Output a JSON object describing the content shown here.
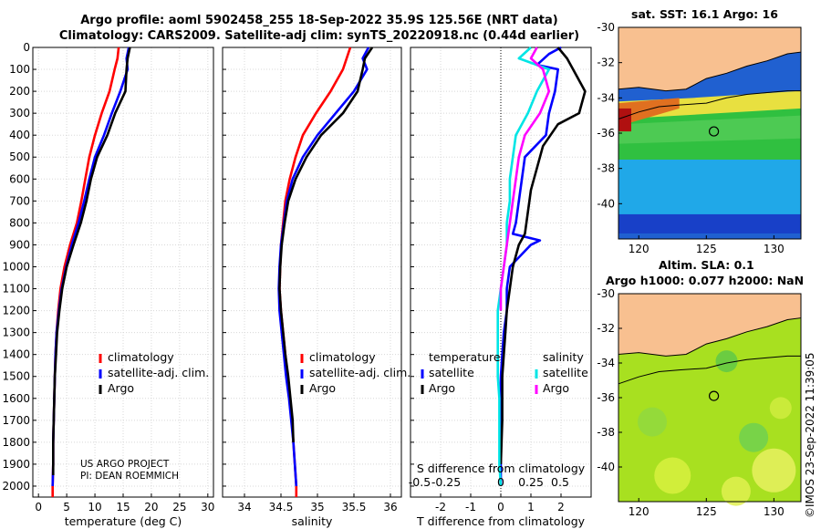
{
  "header": {
    "title1": "Argo profile: aoml 5902458_255 18-Sep-2022 35.9S 125.56E (NRT data)",
    "title2": "Climatology: CARS2009. Satellite-adj clim: synTS_20220918.nc (0.44d earlier)"
  },
  "colors": {
    "clim": "#ff0000",
    "sat": "#0000ff",
    "argo": "#000000",
    "sat_s": "#00e5e5",
    "argo_s": "#ff00ff"
  },
  "chart_data": [
    {
      "type": "line",
      "id": "temperature",
      "xlabel": "temperature (deg C)",
      "ylim": [
        2050,
        0
      ],
      "xlim": [
        -1,
        31
      ],
      "xticks": [
        0,
        5,
        10,
        15,
        20,
        25,
        30
      ],
      "yticks": [
        0,
        100,
        200,
        300,
        400,
        500,
        600,
        700,
        800,
        900,
        1000,
        1100,
        1200,
        1300,
        1400,
        1500,
        1600,
        1700,
        1800,
        1900,
        2000
      ],
      "legend": [
        "climatology",
        "satellite-adj. clim.",
        "Argo"
      ],
      "series": [
        {
          "name": "climatology",
          "color": "#ff0000",
          "points": [
            [
              14.2,
              0
            ],
            [
              14.0,
              50
            ],
            [
              13.5,
              100
            ],
            [
              12.6,
              200
            ],
            [
              11.2,
              300
            ],
            [
              10.0,
              400
            ],
            [
              9.0,
              500
            ],
            [
              8.3,
              600
            ],
            [
              7.6,
              700
            ],
            [
              6.8,
              800
            ],
            [
              5.6,
              900
            ],
            [
              4.6,
              1000
            ],
            [
              3.9,
              1100
            ],
            [
              3.5,
              1200
            ],
            [
              3.2,
              1300
            ],
            [
              3.0,
              1400
            ],
            [
              2.9,
              1500
            ],
            [
              2.8,
              1600
            ],
            [
              2.7,
              1700
            ],
            [
              2.6,
              1800
            ],
            [
              2.6,
              1900
            ],
            [
              2.5,
              2000
            ],
            [
              2.5,
              2050
            ]
          ]
        },
        {
          "name": "satellite-adj. clim.",
          "color": "#0000ff",
          "points": [
            [
              16.0,
              0
            ],
            [
              15.6,
              50
            ],
            [
              15.8,
              100
            ],
            [
              14.5,
              200
            ],
            [
              13.0,
              300
            ],
            [
              11.6,
              400
            ],
            [
              10.0,
              500
            ],
            [
              9.0,
              600
            ],
            [
              8.1,
              700
            ],
            [
              7.1,
              800
            ],
            [
              5.9,
              900
            ],
            [
              4.9,
              1000
            ],
            [
              4.1,
              1100
            ],
            [
              3.6,
              1200
            ],
            [
              3.2,
              1300
            ],
            [
              3.0,
              1400
            ],
            [
              2.9,
              1500
            ],
            [
              2.8,
              1600
            ],
            [
              2.7,
              1700
            ],
            [
              2.6,
              1800
            ],
            [
              2.6,
              1900
            ],
            [
              2.5,
              2000
            ]
          ]
        },
        {
          "name": "Argo",
          "color": "#000000",
          "points": [
            [
              16.2,
              0
            ],
            [
              15.8,
              50
            ],
            [
              15.6,
              100
            ],
            [
              15.4,
              200
            ],
            [
              13.6,
              300
            ],
            [
              12.2,
              400
            ],
            [
              10.4,
              500
            ],
            [
              9.3,
              600
            ],
            [
              8.5,
              700
            ],
            [
              7.5,
              800
            ],
            [
              6.2,
              900
            ],
            [
              5.0,
              1000
            ],
            [
              4.2,
              1100
            ],
            [
              3.7,
              1200
            ],
            [
              3.3,
              1300
            ],
            [
              3.1,
              1400
            ],
            [
              2.9,
              1500
            ],
            [
              2.8,
              1600
            ],
            [
              2.7,
              1700
            ],
            [
              2.6,
              1800
            ],
            [
              2.6,
              1900
            ],
            [
              2.6,
              1950
            ]
          ]
        }
      ],
      "annotations": [
        "US ARGO PROJECT",
        "PI: DEAN ROEMMICH"
      ]
    },
    {
      "type": "line",
      "id": "salinity",
      "xlabel": "salinity",
      "ylim": [
        2050,
        0
      ],
      "xlim": [
        33.7,
        36.15
      ],
      "xticks": [
        34,
        34.5,
        35,
        35.5,
        36
      ],
      "legend": [
        "climatology",
        "satellite-adj. clim.",
        "Argo"
      ],
      "series": [
        {
          "name": "climatology",
          "color": "#ff0000",
          "points": [
            [
              35.45,
              0
            ],
            [
              35.4,
              50
            ],
            [
              35.35,
              100
            ],
            [
              35.18,
              200
            ],
            [
              34.98,
              300
            ],
            [
              34.8,
              400
            ],
            [
              34.7,
              500
            ],
            [
              34.62,
              600
            ],
            [
              34.56,
              700
            ],
            [
              34.53,
              800
            ],
            [
              34.5,
              900
            ],
            [
              34.49,
              1000
            ],
            [
              34.48,
              1100
            ],
            [
              34.5,
              1200
            ],
            [
              34.53,
              1300
            ],
            [
              34.56,
              1400
            ],
            [
              34.59,
              1500
            ],
            [
              34.62,
              1600
            ],
            [
              34.65,
              1700
            ],
            [
              34.67,
              1800
            ],
            [
              34.69,
              1900
            ],
            [
              34.71,
              2000
            ],
            [
              34.71,
              2050
            ]
          ]
        },
        {
          "name": "satellite-adj. clim.",
          "color": "#0000ff",
          "points": [
            [
              35.7,
              0
            ],
            [
              35.62,
              50
            ],
            [
              35.68,
              100
            ],
            [
              35.5,
              200
            ],
            [
              35.25,
              300
            ],
            [
              35.0,
              400
            ],
            [
              34.8,
              500
            ],
            [
              34.66,
              600
            ],
            [
              34.58,
              700
            ],
            [
              34.54,
              800
            ],
            [
              34.5,
              900
            ],
            [
              34.48,
              1000
            ],
            [
              34.47,
              1100
            ],
            [
              34.48,
              1200
            ],
            [
              34.51,
              1300
            ],
            [
              34.54,
              1400
            ],
            [
              34.57,
              1500
            ],
            [
              34.61,
              1600
            ],
            [
              34.64,
              1700
            ],
            [
              34.67,
              1800
            ],
            [
              34.69,
              1900
            ],
            [
              34.71,
              2000
            ]
          ]
        },
        {
          "name": "Argo",
          "color": "#000000",
          "points": [
            [
              35.75,
              0
            ],
            [
              35.65,
              50
            ],
            [
              35.62,
              100
            ],
            [
              35.55,
              200
            ],
            [
              35.35,
              300
            ],
            [
              35.05,
              400
            ],
            [
              34.85,
              500
            ],
            [
              34.7,
              600
            ],
            [
              34.6,
              700
            ],
            [
              34.55,
              800
            ],
            [
              34.51,
              900
            ],
            [
              34.49,
              1000
            ],
            [
              34.48,
              1100
            ],
            [
              34.5,
              1200
            ],
            [
              34.53,
              1300
            ],
            [
              34.56,
              1400
            ],
            [
              34.6,
              1500
            ],
            [
              34.63,
              1600
            ],
            [
              34.66,
              1700
            ],
            [
              34.67,
              1800
            ]
          ]
        }
      ]
    },
    {
      "type": "line",
      "id": "difference",
      "xlabel": "T difference from climatology",
      "xlabel2": "S difference from climatology",
      "ylim": [
        2050,
        0
      ],
      "xlim": [
        -3,
        3
      ],
      "xticks": [
        -2,
        -1,
        0,
        1,
        2
      ],
      "xticks_labels": [
        "-2",
        "-1",
        "0",
        "1",
        "2"
      ],
      "sticks_labels": [
        "-0.5",
        "-0.25",
        "0",
        "0.25",
        "0.5"
      ],
      "legend_t_title": "temperature",
      "legend_s_title": "salinity",
      "legend": [
        "satellite",
        "Argo",
        "satellite",
        "Argo"
      ],
      "series": [
        {
          "name": "T satellite",
          "color": "#0000ff",
          "points": [
            [
              2.0,
              0
            ],
            [
              1.6,
              30
            ],
            [
              1.2,
              80
            ],
            [
              1.9,
              100
            ],
            [
              1.8,
              200
            ],
            [
              1.6,
              300
            ],
            [
              1.5,
              400
            ],
            [
              0.8,
              500
            ],
            [
              0.7,
              600
            ],
            [
              0.6,
              700
            ],
            [
              0.5,
              800
            ],
            [
              0.4,
              850
            ],
            [
              1.3,
              880
            ],
            [
              1.0,
              900
            ],
            [
              0.3,
              1000
            ],
            [
              0.2,
              1100
            ],
            [
              0.2,
              1200
            ],
            [
              0.1,
              1300
            ],
            [
              0.05,
              1400
            ],
            [
              0.0,
              1500
            ],
            [
              0.0,
              2000
            ]
          ]
        },
        {
          "name": "T Argo",
          "color": "#000000",
          "points": [
            [
              1.9,
              0
            ],
            [
              2.2,
              50
            ],
            [
              2.4,
              100
            ],
            [
              2.8,
              200
            ],
            [
              2.6,
              300
            ],
            [
              1.9,
              350
            ],
            [
              1.4,
              450
            ],
            [
              1.2,
              550
            ],
            [
              1.0,
              650
            ],
            [
              0.9,
              750
            ],
            [
              0.8,
              850
            ],
            [
              0.6,
              900
            ],
            [
              0.4,
              1000
            ],
            [
              0.3,
              1100
            ],
            [
              0.2,
              1200
            ],
            [
              0.15,
              1300
            ],
            [
              0.1,
              1400
            ],
            [
              0.05,
              1500
            ],
            [
              0.05,
              1600
            ],
            [
              0.05,
              1700
            ],
            [
              0.0,
              1900
            ]
          ]
        },
        {
          "name": "S satellite",
          "color": "#00e5e5",
          "points": [
            [
              1.0,
              0
            ],
            [
              0.6,
              50
            ],
            [
              1.6,
              100
            ],
            [
              1.2,
              200
            ],
            [
              0.9,
              300
            ],
            [
              0.5,
              400
            ],
            [
              0.4,
              500
            ],
            [
              0.3,
              600
            ],
            [
              0.3,
              700
            ],
            [
              0.2,
              800
            ],
            [
              0.2,
              900
            ],
            [
              0.1,
              1000
            ],
            [
              0.0,
              1100
            ],
            [
              -0.1,
              1200
            ],
            [
              -0.1,
              1300
            ],
            [
              -0.1,
              1400
            ],
            [
              -0.1,
              1500
            ],
            [
              -0.05,
              1600
            ],
            [
              -0.05,
              1700
            ],
            [
              -0.05,
              1800
            ],
            [
              -0.05,
              1900
            ],
            [
              0.0,
              2000
            ]
          ]
        },
        {
          "name": "S Argo",
          "color": "#ff00ff",
          "points": [
            [
              1.2,
              0
            ],
            [
              1.0,
              50
            ],
            [
              1.4,
              100
            ],
            [
              1.6,
              200
            ],
            [
              1.3,
              300
            ],
            [
              0.8,
              400
            ],
            [
              0.6,
              500
            ],
            [
              0.5,
              600
            ],
            [
              0.4,
              700
            ],
            [
              0.3,
              800
            ],
            [
              0.2,
              900
            ],
            [
              0.1,
              1000
            ],
            [
              0.0,
              1100
            ],
            [
              0.0,
              1200
            ]
          ]
        }
      ]
    },
    {
      "type": "heatmap",
      "id": "sst_map",
      "title": "sat. SST: 16.1 Argo: 16",
      "xticks": [
        120,
        125,
        130
      ],
      "yticks": [
        -30,
        -32,
        -34,
        -36,
        -38,
        -40
      ],
      "marker": {
        "lon": 125.56,
        "lat": -35.9
      }
    },
    {
      "type": "heatmap",
      "id": "sla_map",
      "title1": "Altim. SLA: 0.1",
      "title2": "Argo h1000: 0.077 h2000: NaN",
      "xticks": [
        120,
        125,
        130
      ],
      "yticks": [
        -30,
        -32,
        -34,
        -36,
        -38,
        -40
      ],
      "marker": {
        "lon": 125.56,
        "lat": -35.9
      }
    }
  ],
  "footer": {
    "timestamp": "©IMOS 23-Sep-2022 11:39:05"
  }
}
